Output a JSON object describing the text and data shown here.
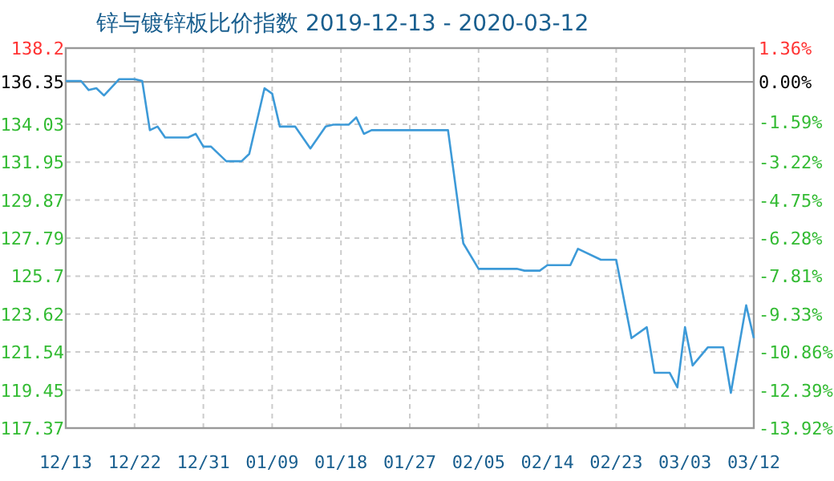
{
  "chart_data": {
    "type": "line",
    "title": "锌与镀锌板比价指数 2019-12-13 - 2020-03-12",
    "xlim": [
      "2019-12-13",
      "2020-03-12"
    ],
    "xticks": [
      {
        "value": "2019-12-13",
        "label": "12/13"
      },
      {
        "value": "2019-12-22",
        "label": "12/22"
      },
      {
        "value": "2019-12-31",
        "label": "12/31"
      },
      {
        "value": "2020-01-09",
        "label": "01/09"
      },
      {
        "value": "2020-01-18",
        "label": "01/18"
      },
      {
        "value": "2020-01-27",
        "label": "01/27"
      },
      {
        "value": "2020-02-05",
        "label": "02/05"
      },
      {
        "value": "2020-02-14",
        "label": "02/14"
      },
      {
        "value": "2020-02-23",
        "label": "02/23"
      },
      {
        "value": "2020-03-03",
        "label": "03/03"
      },
      {
        "value": "2020-03-12",
        "label": "03/12"
      }
    ],
    "ylim": [
      117.37,
      138.2
    ],
    "yticks": [
      117.37,
      119.45,
      121.54,
      123.62,
      125.7,
      127.79,
      129.87,
      131.95,
      134.03,
      136.35,
      138.2
    ],
    "y2lim": [
      -13.92,
      1.36
    ],
    "y2ticks": [
      {
        "value": -13.92,
        "label": "-13.92%"
      },
      {
        "value": -12.39,
        "label": "-12.39%"
      },
      {
        "value": -10.86,
        "label": "-10.86%"
      },
      {
        "value": -9.33,
        "label": "-9.33%"
      },
      {
        "value": -7.81,
        "label": "-7.81%"
      },
      {
        "value": -6.28,
        "label": "-6.28%"
      },
      {
        "value": -4.75,
        "label": "-4.75%"
      },
      {
        "value": -3.22,
        "label": "-3.22%"
      },
      {
        "value": -1.59,
        "label": "-1.59%"
      },
      {
        "value": 0,
        "label": "0.00%"
      },
      {
        "value": 1.36,
        "label": "1.36%"
      }
    ],
    "grid": true,
    "ref_lines": [
      {
        "axis": "y",
        "value": 136.35,
        "color": "#999999"
      }
    ],
    "series": [
      {
        "color": "#3d9ad8",
        "x": [
          "2019-12-13",
          "2019-12-15",
          "2019-12-16",
          "2019-12-17",
          "2019-12-18",
          "2019-12-20",
          "2019-12-22",
          "2019-12-23",
          "2019-12-24",
          "2019-12-25",
          "2019-12-26",
          "2019-12-29",
          "2019-12-30",
          "2019-12-31",
          "2020-01-01",
          "2020-01-03",
          "2020-01-05",
          "2020-01-06",
          "2020-01-08",
          "2020-01-09",
          "2020-01-10",
          "2020-01-12",
          "2020-01-14",
          "2020-01-16",
          "2020-01-17",
          "2020-01-19",
          "2020-01-20",
          "2020-01-21",
          "2020-01-22",
          "2020-02-01",
          "2020-02-03",
          "2020-02-05",
          "2020-02-10",
          "2020-02-11",
          "2020-02-13",
          "2020-02-14",
          "2020-02-17",
          "2020-02-18",
          "2020-02-21",
          "2020-02-23",
          "2020-02-25",
          "2020-02-27",
          "2020-02-28",
          "2020-03-01",
          "2020-03-02",
          "2020-03-03",
          "2020-03-04",
          "2020-03-06",
          "2020-03-08",
          "2020-03-09",
          "2020-03-11",
          "2020-03-12"
        ],
        "values": [
          136.4,
          136.4,
          135.9,
          136.0,
          135.6,
          136.5,
          136.5,
          136.4,
          133.7,
          133.9,
          133.3,
          133.3,
          133.5,
          132.8,
          132.8,
          132.0,
          132.0,
          132.4,
          136.0,
          135.7,
          133.9,
          133.9,
          132.7,
          133.9,
          134.0,
          134.0,
          134.4,
          133.5,
          133.7,
          133.7,
          127.5,
          126.1,
          126.1,
          126.0,
          126.0,
          126.3,
          126.3,
          127.2,
          126.6,
          126.6,
          122.3,
          122.9,
          120.4,
          120.4,
          119.6,
          122.9,
          120.8,
          121.8,
          121.8,
          119.3,
          124.1,
          122.3
        ]
      }
    ]
  }
}
